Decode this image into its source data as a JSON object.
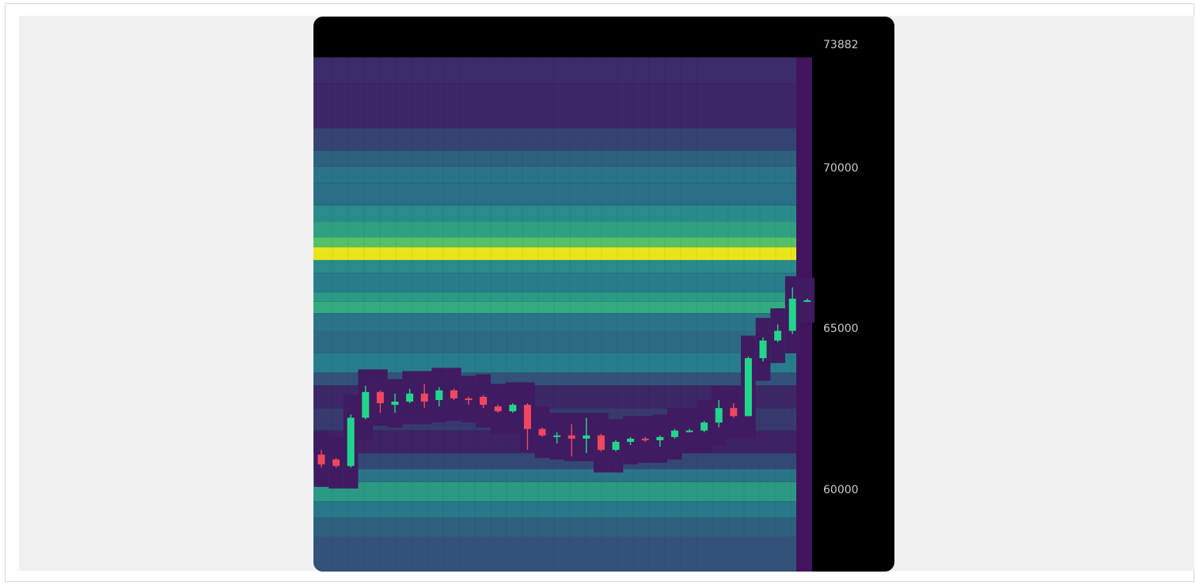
{
  "chart_data": {
    "type": "heatmap",
    "title": "",
    "xlabel": "",
    "ylabel": "",
    "ylim": [
      57800,
      73882
    ],
    "y_tick_labels": [
      "73882",
      "70000",
      "65000",
      "60000"
    ],
    "y_tick_values": [
      73882,
      70000,
      65000,
      60000
    ],
    "colors": {
      "background": "#000000",
      "bullish_candle": "#21d68b",
      "bearish_candle": "#f0475f",
      "heatmap_low": "#440a5a",
      "heatmap_mid": "#26828e",
      "heatmap_high": "#e8e51a"
    },
    "heatmap_bands": [
      {
        "from": 72700,
        "to": 73500,
        "intensity": 0.14
      },
      {
        "from": 71300,
        "to": 72700,
        "intensity": 0.12
      },
      {
        "from": 70600,
        "to": 71300,
        "intensity": 0.24
      },
      {
        "from": 70100,
        "to": 70600,
        "intensity": 0.36
      },
      {
        "from": 69600,
        "to": 70100,
        "intensity": 0.44
      },
      {
        "from": 68900,
        "to": 69600,
        "intensity": 0.42
      },
      {
        "from": 68400,
        "to": 68900,
        "intensity": 0.55
      },
      {
        "from": 67900,
        "to": 68400,
        "intensity": 0.66
      },
      {
        "from": 67600,
        "to": 67900,
        "intensity": 0.82
      },
      {
        "from": 67200,
        "to": 67600,
        "intensity": 1.0
      },
      {
        "from": 66800,
        "to": 67200,
        "intensity": 0.55
      },
      {
        "from": 66200,
        "to": 66800,
        "intensity": 0.48
      },
      {
        "from": 65900,
        "to": 66200,
        "intensity": 0.62
      },
      {
        "from": 65550,
        "to": 65900,
        "intensity": 0.72
      },
      {
        "from": 65000,
        "to": 65550,
        "intensity": 0.44
      },
      {
        "from": 64300,
        "to": 65000,
        "intensity": 0.4
      },
      {
        "from": 63700,
        "to": 64300,
        "intensity": 0.48
      },
      {
        "from": 63300,
        "to": 63700,
        "intensity": 0.3
      },
      {
        "from": 62600,
        "to": 63300,
        "intensity": 0.12
      },
      {
        "from": 61900,
        "to": 62600,
        "intensity": 0.2
      },
      {
        "from": 61200,
        "to": 61900,
        "intensity": 0.1
      },
      {
        "from": 60700,
        "to": 61200,
        "intensity": 0.26
      },
      {
        "from": 60300,
        "to": 60700,
        "intensity": 0.44
      },
      {
        "from": 59700,
        "to": 60300,
        "intensity": 0.62
      },
      {
        "from": 59200,
        "to": 59700,
        "intensity": 0.46
      },
      {
        "from": 58600,
        "to": 59200,
        "intensity": 0.36
      },
      {
        "from": 57800,
        "to": 58600,
        "intensity": 0.3
      }
    ],
    "candles": [
      {
        "o": 61150,
        "h": 61300,
        "l": 60750,
        "c": 60850
      },
      {
        "o": 61000,
        "h": 61050,
        "l": 60750,
        "c": 60800
      },
      {
        "o": 60800,
        "h": 62400,
        "l": 60750,
        "c": 62300
      },
      {
        "o": 62300,
        "h": 63300,
        "l": 62250,
        "c": 63100
      },
      {
        "o": 63100,
        "h": 63150,
        "l": 62450,
        "c": 62750
      },
      {
        "o": 62700,
        "h": 63050,
        "l": 62450,
        "c": 62800
      },
      {
        "o": 62800,
        "h": 63200,
        "l": 62750,
        "c": 63050
      },
      {
        "o": 63050,
        "h": 63350,
        "l": 62600,
        "c": 62800
      },
      {
        "o": 62850,
        "h": 63250,
        "l": 62650,
        "c": 63150
      },
      {
        "o": 63150,
        "h": 63200,
        "l": 62850,
        "c": 62900
      },
      {
        "o": 62900,
        "h": 62950,
        "l": 62700,
        "c": 62850
      },
      {
        "o": 62950,
        "h": 63000,
        "l": 62600,
        "c": 62700
      },
      {
        "o": 62650,
        "h": 62700,
        "l": 62450,
        "c": 62500
      },
      {
        "o": 62500,
        "h": 62750,
        "l": 62450,
        "c": 62700
      },
      {
        "o": 62700,
        "h": 62750,
        "l": 61300,
        "c": 61950
      },
      {
        "o": 61950,
        "h": 62000,
        "l": 61700,
        "c": 61750
      },
      {
        "o": 61700,
        "h": 61850,
        "l": 61500,
        "c": 61750
      },
      {
        "o": 61750,
        "h": 62100,
        "l": 61100,
        "c": 61650
      },
      {
        "o": 61650,
        "h": 62300,
        "l": 61200,
        "c": 61750
      },
      {
        "o": 61750,
        "h": 61800,
        "l": 61250,
        "c": 61300
      },
      {
        "o": 61300,
        "h": 61600,
        "l": 61250,
        "c": 61550
      },
      {
        "o": 61550,
        "h": 61700,
        "l": 61450,
        "c": 61650
      },
      {
        "o": 61650,
        "h": 61700,
        "l": 61550,
        "c": 61600
      },
      {
        "o": 61600,
        "h": 61750,
        "l": 61400,
        "c": 61700
      },
      {
        "o": 61700,
        "h": 61950,
        "l": 61650,
        "c": 61900
      },
      {
        "o": 61900,
        "h": 61950,
        "l": 61850,
        "c": 61900
      },
      {
        "o": 61900,
        "h": 62200,
        "l": 61850,
        "c": 62150
      },
      {
        "o": 62150,
        "h": 62850,
        "l": 62000,
        "c": 62600
      },
      {
        "o": 62600,
        "h": 62750,
        "l": 62300,
        "c": 62350
      },
      {
        "o": 62350,
        "h": 64200,
        "l": 62350,
        "c": 64150
      },
      {
        "o": 64150,
        "h": 64800,
        "l": 64050,
        "c": 64700
      },
      {
        "o": 64700,
        "h": 65200,
        "l": 64650,
        "c": 65000
      },
      {
        "o": 65000,
        "h": 66350,
        "l": 64900,
        "c": 66000
      },
      {
        "o": 65950,
        "h": 66000,
        "l": 65900,
        "c": 65950
      }
    ]
  }
}
